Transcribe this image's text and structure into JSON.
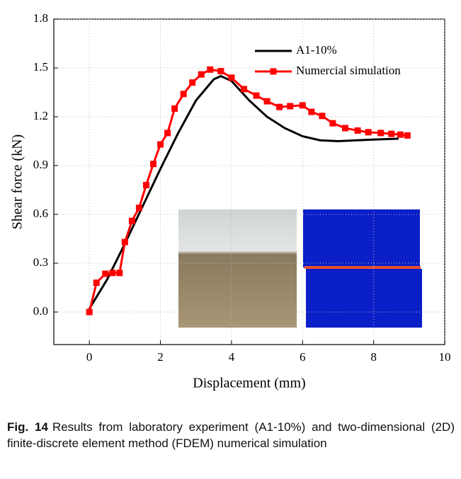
{
  "chart_data": {
    "type": "line",
    "x_label": "Displacement (mm)",
    "y_label": "Shear force (kN)",
    "xlim": [
      -1,
      10
    ],
    "ylim": [
      -0.2,
      1.8
    ],
    "xticks": [
      0,
      2,
      4,
      6,
      8,
      10
    ],
    "yticks": [
      {
        "value": 0,
        "label": "0.0"
      },
      0.3,
      0.6,
      0.9,
      1.2,
      1.5,
      1.8
    ],
    "grid": true,
    "legend": "top-right",
    "series": [
      {
        "name": "A1-10%",
        "color": "#000000",
        "marker": "none",
        "x": [
          0,
          0.5,
          1,
          1.5,
          2,
          2.5,
          3,
          3.5,
          3.7,
          4,
          4.5,
          5,
          5.5,
          6,
          6.5,
          7,
          7.5,
          8,
          8.7
        ],
        "values": [
          0.02,
          0.2,
          0.42,
          0.65,
          0.88,
          1.1,
          1.3,
          1.43,
          1.45,
          1.42,
          1.3,
          1.2,
          1.13,
          1.08,
          1.055,
          1.05,
          1.055,
          1.06,
          1.065
        ]
      },
      {
        "name": "Numercial simulation",
        "color": "#ff0000",
        "marker": "square",
        "x": [
          0,
          0.2,
          0.45,
          0.65,
          0.85,
          1.0,
          1.2,
          1.4,
          1.6,
          1.8,
          2.0,
          2.2,
          2.4,
          2.65,
          2.9,
          3.15,
          3.4,
          3.7,
          4.0,
          4.35,
          4.7,
          5.0,
          5.35,
          5.65,
          6.0,
          6.25,
          6.55,
          6.85,
          7.2,
          7.55,
          7.85,
          8.2,
          8.5,
          8.75,
          8.95
        ],
        "values": [
          0,
          0.18,
          0.235,
          0.24,
          0.24,
          0.43,
          0.56,
          0.64,
          0.78,
          0.91,
          1.03,
          1.1,
          1.25,
          1.34,
          1.41,
          1.46,
          1.49,
          1.48,
          1.44,
          1.37,
          1.33,
          1.295,
          1.26,
          1.265,
          1.27,
          1.23,
          1.205,
          1.16,
          1.13,
          1.115,
          1.105,
          1.1,
          1.095,
          1.09,
          1.085
        ]
      }
    ]
  },
  "caption": {
    "label": "Fig. 14",
    "text": "Results from laboratory experiment (A1-10%) and two-dimensional (2D) finite-discrete element method (FDEM) numerical simulation"
  }
}
